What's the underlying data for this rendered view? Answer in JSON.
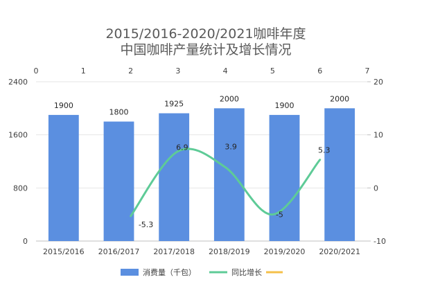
{
  "chart_data": {
    "type": "bar+line",
    "title_lines": [
      "2015/2016-2020/2021咖啡年度",
      "中国咖啡产量统计及增长情况"
    ],
    "categories": [
      "2015/2016",
      "2016/2017",
      "2017/2018",
      "2018/2019",
      "2019/2020",
      "2020/2021"
    ],
    "bar_series": {
      "name": "消费量（千包）",
      "values": [
        1900,
        1800,
        1925,
        2000,
        1900,
        2000
      ],
      "color": "#5b8fe0",
      "axis": "left",
      "ylim": [
        0,
        2400
      ],
      "yticks": [
        "0",
        "800",
        "1600",
        "2400"
      ],
      "labels": [
        "1900",
        "1800",
        "1925",
        "2000",
        "1900",
        "2000"
      ]
    },
    "line_series": {
      "name": "同比增长",
      "x": [
        2,
        3,
        4,
        5,
        6
      ],
      "y": [
        -5.3,
        6.9,
        3.9,
        -5,
        5.3
      ],
      "labels": [
        "-5.3",
        "6.9",
        "3.9",
        "-5",
        "5.3"
      ],
      "color": "#5ecb97",
      "smooth": true,
      "axis": "right",
      "ylim": [
        -10,
        20
      ],
      "yticks": [
        "-10",
        "0",
        "10",
        "20"
      ],
      "top_xlim": [
        0,
        7
      ],
      "top_xticks": [
        "0",
        "1",
        "2",
        "3",
        "4",
        "5",
        "6",
        "7"
      ]
    },
    "extra_legend": {
      "name": "",
      "color": "#f5c04a"
    },
    "legend_position": "bottom",
    "grid": true
  }
}
